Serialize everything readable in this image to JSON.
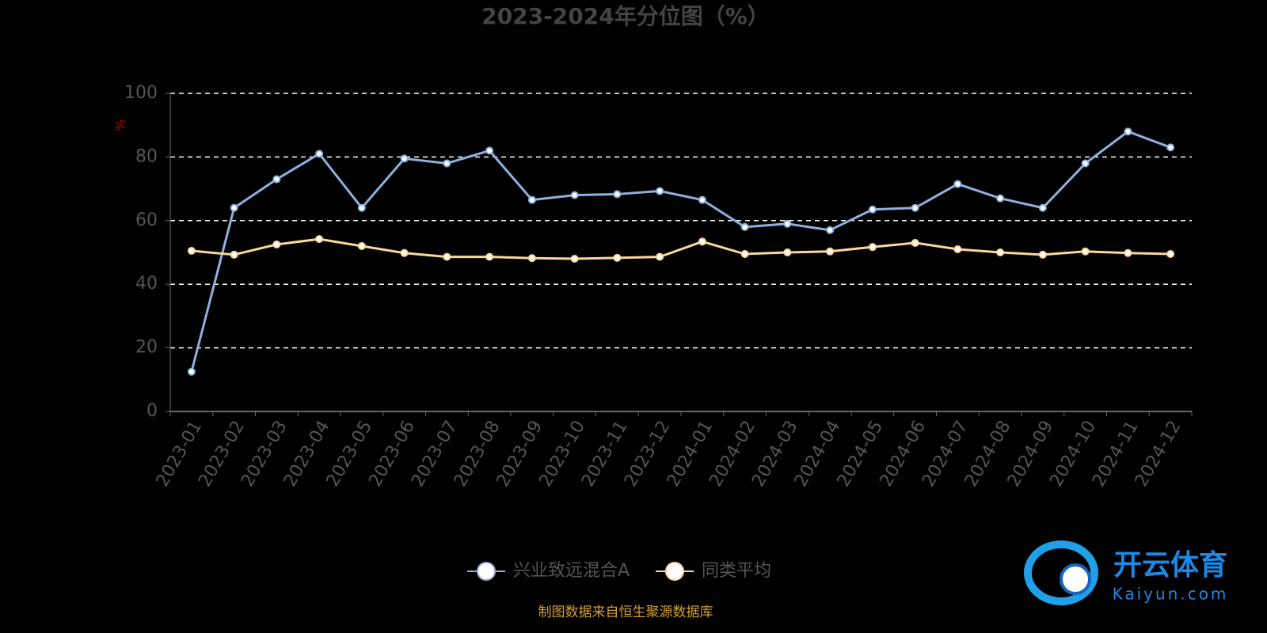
{
  "chart_data": {
    "type": "line",
    "title": "2023-2024年分位图（%）",
    "y_label": "%",
    "categories": [
      "2023-01",
      "2023-02",
      "2023-03",
      "2023-04",
      "2023-05",
      "2023-06",
      "2023-07",
      "2023-08",
      "2023-09",
      "2023-10",
      "2023-11",
      "2023-12",
      "2024-01",
      "2024-02",
      "2024-03",
      "2024-04",
      "2024-05",
      "2024-06",
      "2024-07",
      "2024-08",
      "2024-09",
      "2024-10",
      "2024-11",
      "2024-12"
    ],
    "series": [
      {
        "name": "兴业致远混合A",
        "color": "#8eb0dc",
        "values": [
          12.5,
          64,
          73,
          81,
          64,
          79.5,
          78,
          82,
          66.5,
          68,
          68.3,
          69.3,
          66.5,
          58,
          59,
          57,
          63.5,
          64,
          71.5,
          67,
          64,
          78,
          88,
          83
        ]
      },
      {
        "name": "同类平均",
        "color": "#fbd79c",
        "values": [
          50.5,
          49.3,
          52.5,
          54.2,
          52,
          49.8,
          48.6,
          48.6,
          48.2,
          48,
          48.3,
          48.6,
          53.4,
          49.5,
          50,
          50.3,
          51.7,
          53,
          51,
          50,
          49.3,
          50.3,
          49.8,
          49.5
        ]
      }
    ],
    "ylim": [
      0,
      100
    ],
    "yticks": [
      0,
      20,
      40,
      60,
      80,
      100
    ],
    "grid": true,
    "legend": "bottom",
    "source": "制图数据来自恒生聚源数据库"
  },
  "watermark": {
    "brand": "开云体育",
    "site": "Kaiyun.com"
  }
}
